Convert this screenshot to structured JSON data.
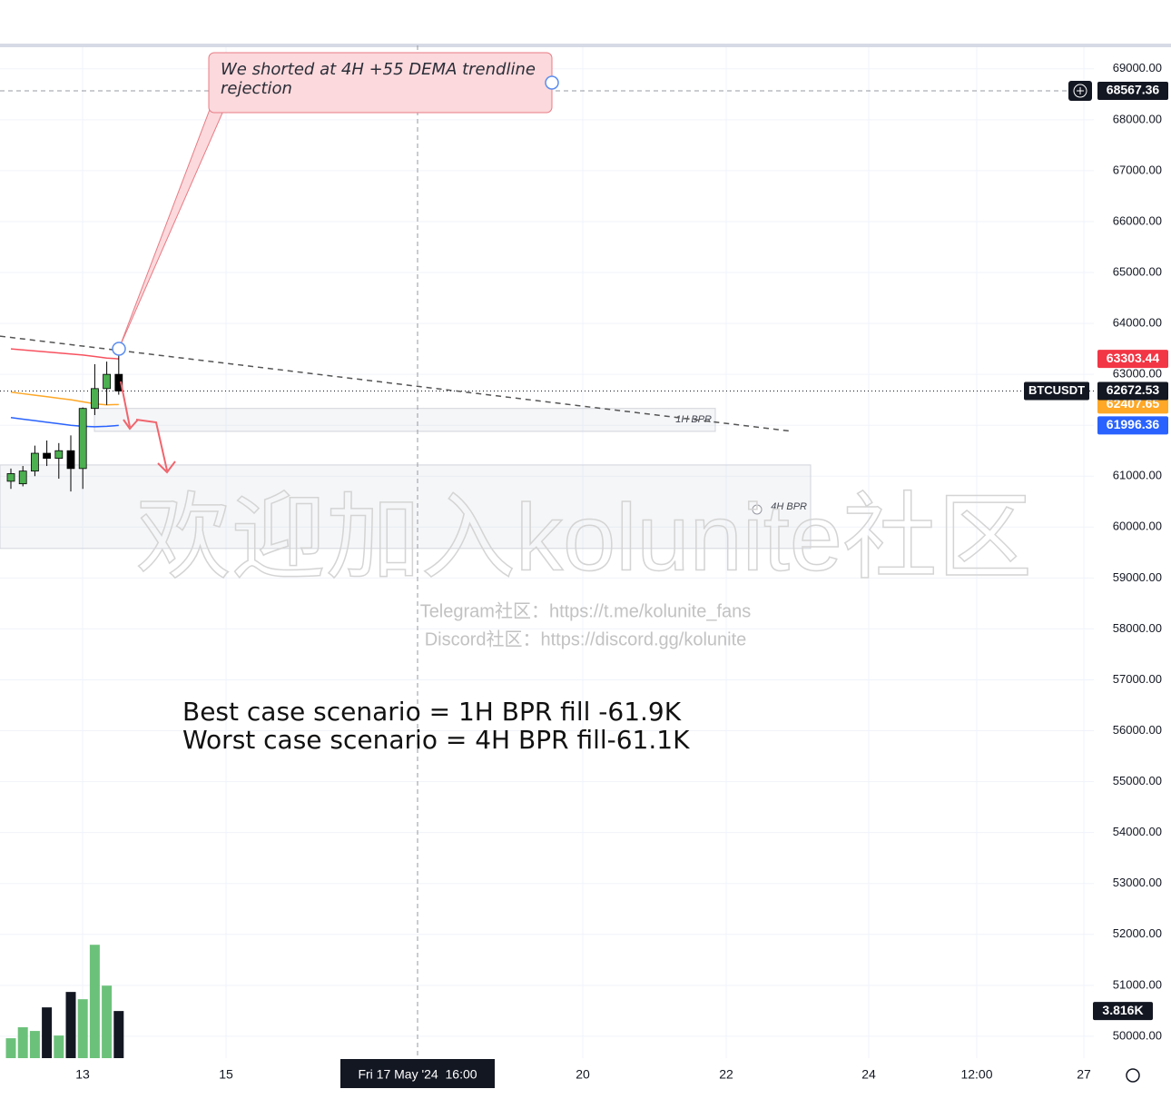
{
  "chart_data": {
    "type": "candlestick",
    "symbol": "BTCUSDT",
    "ylim": [
      49570,
      69460
    ],
    "yticks": [
      {
        "value": 50000,
        "label": "50000.00"
      },
      {
        "value": 51000,
        "label": "51000.00"
      },
      {
        "value": 52000,
        "label": "52000.00"
      },
      {
        "value": 53000,
        "label": "53000.00"
      },
      {
        "value": 54000,
        "label": "54000.00"
      },
      {
        "value": 55000,
        "label": "55000.00"
      },
      {
        "value": 56000,
        "label": "56000.00"
      },
      {
        "value": 57000,
        "label": "57000.00"
      },
      {
        "value": 58000,
        "label": "58000.00"
      },
      {
        "value": 59000,
        "label": "59000.00"
      },
      {
        "value": 60000,
        "label": "60000.00"
      },
      {
        "value": 61000,
        "label": "61000.00"
      },
      {
        "value": 62000,
        "label": "62000.00"
      },
      {
        "value": 63000,
        "label": "63000.00"
      },
      {
        "value": 64000,
        "label": "64000.00"
      },
      {
        "value": 65000,
        "label": "65000.00"
      },
      {
        "value": 66000,
        "label": "66000.00"
      },
      {
        "value": 67000,
        "label": "67000.00"
      },
      {
        "value": 68000,
        "label": "68000.00"
      },
      {
        "value": 69000,
        "label": "69000.00"
      }
    ],
    "grid": true,
    "x_labels": [
      "13",
      "15",
      "20",
      "22",
      "24",
      "12:00",
      "27"
    ],
    "crosshair": {
      "time_label": "Fri 17 May '24  16:00",
      "price": 68567.36
    },
    "candles": {
      "open": [
        60900,
        60850,
        61100,
        61450,
        61350,
        61500,
        61150,
        62330,
        62720,
        63000
      ],
      "high": [
        61150,
        61200,
        61600,
        61700,
        61650,
        61800,
        62350,
        63200,
        63250,
        63400
      ],
      "low": [
        60750,
        60800,
        61000,
        61200,
        60950,
        60700,
        60750,
        62200,
        62400,
        62600
      ],
      "close": [
        61050,
        61100,
        61450,
        61350,
        61500,
        61150,
        62330,
        62720,
        63000,
        62672.53
      ],
      "up_color": "#4caf50",
      "down_color": "#000000"
    },
    "lines": [
      {
        "color": "#f7525f",
        "values": [
          63500,
          63480,
          63460,
          63440,
          63420,
          63400,
          63380,
          63350,
          63320,
          63303.44
        ]
      },
      {
        "color": "#ffa726",
        "values": [
          62650,
          62620,
          62590,
          62560,
          62530,
          62500,
          62460,
          62420,
          62400,
          62407.65
        ]
      },
      {
        "color": "#2962ff",
        "values": [
          62150,
          62120,
          62090,
          62060,
          62030,
          62000,
          61980,
          61970,
          61980,
          61996.36
        ]
      }
    ],
    "volume": {
      "ylim": [
        0,
        15300
      ],
      "values": [
        1610,
        2500,
        2200,
        4110,
        1830,
        5360,
        4770,
        9180,
        5870,
        3816
      ],
      "last_label": "3.816K"
    },
    "zones": [
      {
        "label": "1H BPR",
        "top": 62330,
        "bottom": 61880
      },
      {
        "label": "4H BPR",
        "top": 61220,
        "bottom": 59580
      }
    ],
    "trendline": {
      "start": 63750,
      "end": 61880
    },
    "annotations": {
      "callout": "We shorted at 4H +55 DEMA trendline rejection",
      "scenarios": [
        "Best case scenario = 1H BPR fill -61.9K",
        "Worst case scenario = 4H BPR fill-61.1K"
      ]
    },
    "watermark": {
      "title": "欢迎加入kolunite社区",
      "lines": [
        "Telegram社区：https://t.me/kolunite_fans",
        "Discord社区：https://discord.gg/kolunite"
      ]
    }
  }
}
